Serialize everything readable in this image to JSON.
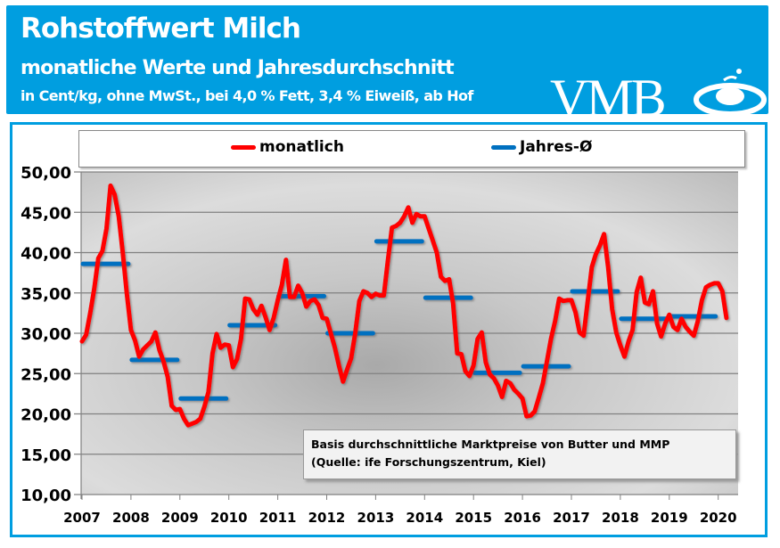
{
  "header": {
    "title": "Rohstoffwert Milch",
    "subtitle": "monatliche Werte und Jahresdurchschnitt",
    "unit_note": "in Cent/kg, ohne MwSt., bei 4,0 % Fett, 3,4 % Eiweiß, ab Hof",
    "logo_text": "VMB",
    "background_color": "#009ee0"
  },
  "annotation": {
    "line1": "Basis durchschnittliche Marktpreise von Butter und MMP",
    "line2": "(Quelle: ife Forschungszentrum, Kiel)"
  },
  "chart_data": {
    "type": "line",
    "title": "",
    "xlabel": "",
    "ylabel": "",
    "ylim": [
      10,
      50
    ],
    "xlim": [
      2007,
      2020.4
    ],
    "grid": true,
    "legend_position": "top",
    "y_ticks": [
      "10,00",
      "15,00",
      "20,00",
      "25,00",
      "30,00",
      "35,00",
      "40,00",
      "45,00",
      "50,00"
    ],
    "x_ticks": [
      "2007",
      "2008",
      "2009",
      "2010",
      "2011",
      "2012",
      "2013",
      "2014",
      "2015",
      "2016",
      "2017",
      "2018",
      "2019",
      "2020"
    ],
    "series": [
      {
        "name": "monatlich",
        "color": "#ff0000",
        "start": "2007-01",
        "frequency": "monthly",
        "values": [
          29.0,
          29.8,
          32.5,
          35.5,
          39.3,
          40.2,
          43.0,
          48.3,
          47.2,
          44.5,
          40.0,
          34.9,
          30.4,
          29.1,
          27.1,
          28.0,
          28.5,
          29.0,
          30.1,
          27.9,
          26.5,
          24.6,
          21.0,
          20.5,
          20.6,
          19.4,
          18.6,
          18.8,
          19.0,
          19.4,
          20.9,
          22.7,
          27.5,
          29.9,
          28.2,
          28.6,
          28.5,
          25.8,
          26.8,
          29.3,
          34.3,
          34.2,
          33.0,
          32.3,
          33.4,
          32.0,
          30.4,
          31.9,
          34.1,
          36.0,
          39.1,
          34.5,
          34.5,
          35.9,
          35.0,
          33.3,
          34.0,
          34.2,
          33.5,
          31.9,
          31.8,
          30.0,
          28.2,
          26.0,
          24.0,
          25.5,
          26.9,
          30.0,
          34.0,
          35.2,
          35.0,
          34.5,
          34.9,
          34.7,
          34.7,
          39.0,
          43.1,
          43.3,
          43.7,
          44.5,
          45.6,
          43.7,
          44.8,
          44.5,
          44.5,
          43.0,
          41.5,
          40.0,
          37.0,
          36.5,
          36.7,
          33.7,
          27.5,
          27.4,
          25.3,
          24.7,
          26.0,
          29.3,
          30.1,
          26.4,
          24.9,
          24.4,
          23.5,
          22.1,
          24.1,
          23.8,
          23.0,
          22.5,
          21.9,
          19.7,
          19.8,
          20.3,
          22.0,
          23.8,
          26.5,
          29.3,
          31.5,
          34.3,
          34.0,
          34.1,
          34.1,
          32.6,
          30.1,
          29.7,
          34.0,
          38.2,
          39.8,
          40.9,
          42.3,
          38.2,
          33.0,
          30.1,
          28.5,
          27.1,
          29.0,
          30.4,
          35.1,
          36.9,
          33.8,
          33.6,
          35.2,
          31.2,
          29.6,
          31.2,
          32.3,
          30.8,
          30.4,
          31.8,
          30.8,
          30.2,
          29.7,
          31.5,
          34.1,
          35.7,
          36.0,
          36.2,
          36.2,
          35.2,
          31.9
        ]
      },
      {
        "name": "Jahres-Ø",
        "color": "#0070c0",
        "years": [
          2007,
          2008,
          2009,
          2010,
          2011,
          2012,
          2013,
          2014,
          2015,
          2016,
          2017,
          2018,
          2019
        ],
        "values": [
          38.6,
          26.7,
          21.9,
          31.0,
          34.6,
          30.0,
          41.4,
          34.4,
          25.1,
          25.9,
          35.2,
          31.8,
          32.1
        ]
      }
    ]
  }
}
